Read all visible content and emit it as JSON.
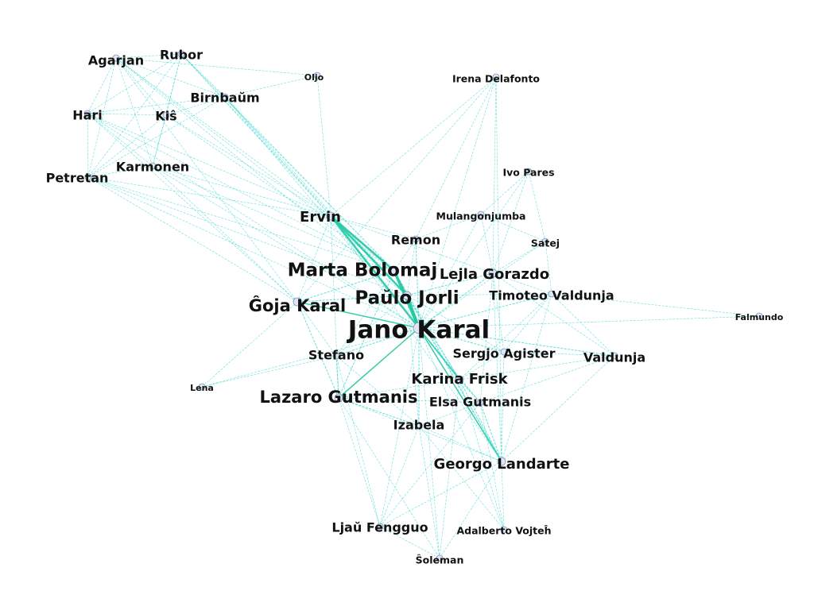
{
  "graph": {
    "edge_color": "#33d6c9",
    "edge_strong_color": "#1fc79f",
    "node_fill": "#dfe6f6",
    "node_stroke": "#7f8fb5",
    "label_color": "#111111",
    "nodes": [
      {
        "id": "jano",
        "label": "Jano Karal",
        "weight": 10
      },
      {
        "id": "paulo",
        "label": "Paŭlo Jorli",
        "weight": 7
      },
      {
        "id": "marta",
        "label": "Marta Bolomaj",
        "weight": 7
      },
      {
        "id": "goja",
        "label": "Ĝoja Karal",
        "weight": 6
      },
      {
        "id": "lazaro",
        "label": "Lazaro Gutmanis",
        "weight": 6
      },
      {
        "id": "karina",
        "label": "Karina Frisk",
        "weight": 5
      },
      {
        "id": "georgo",
        "label": "Georgo Landarte",
        "weight": 5
      },
      {
        "id": "lejla",
        "label": "Lejla Gorazdo",
        "weight": 5
      },
      {
        "id": "ervin",
        "label": "Ervin",
        "weight": 5
      },
      {
        "id": "elsa",
        "label": "Elsa Gutmanis",
        "weight": 4
      },
      {
        "id": "agarjan",
        "label": "Agarjan",
        "weight": 4
      },
      {
        "id": "rubor",
        "label": "Rubor",
        "weight": 4
      },
      {
        "id": "birnbaum",
        "label": "Birnbaŭm",
        "weight": 4
      },
      {
        "id": "hari",
        "label": "Hari",
        "weight": 4
      },
      {
        "id": "kis",
        "label": "Kiŝ",
        "weight": 4
      },
      {
        "id": "karmonen",
        "label": "Karmonen",
        "weight": 4
      },
      {
        "id": "petretan",
        "label": "Petretan",
        "weight": 4
      },
      {
        "id": "stefano",
        "label": "Stefano",
        "weight": 4
      },
      {
        "id": "izabela",
        "label": "Izabela",
        "weight": 4
      },
      {
        "id": "sergjo",
        "label": "Sergjo Agister",
        "weight": 4
      },
      {
        "id": "valdunja",
        "label": "Valdunja",
        "weight": 4
      },
      {
        "id": "timoteo",
        "label": "Timoteo Valdunja",
        "weight": 4
      },
      {
        "id": "remon",
        "label": "Remon",
        "weight": 4
      },
      {
        "id": "ljau",
        "label": "Ljaŭ Fengguo",
        "weight": 4
      },
      {
        "id": "mulangonjumba",
        "label": "Mulangonjumba",
        "weight": 3
      },
      {
        "id": "satej",
        "label": "Satej",
        "weight": 3
      },
      {
        "id": "ivo",
        "label": "Ivo Pares",
        "weight": 3
      },
      {
        "id": "irena",
        "label": "Irena Delafonto",
        "weight": 3
      },
      {
        "id": "oljo",
        "label": "Oljo",
        "weight": 2
      },
      {
        "id": "falmundo",
        "label": "Falmundo",
        "weight": 2
      },
      {
        "id": "lena",
        "label": "Lena",
        "weight": 2
      },
      {
        "id": "adalberto",
        "label": "Adalberto Vojteĥ",
        "weight": 3
      },
      {
        "id": "soleman",
        "label": "Ŝoleman",
        "weight": 3
      }
    ],
    "edges": [
      [
        "jano",
        "paulo",
        5
      ],
      [
        "jano",
        "marta",
        5
      ],
      [
        "jano",
        "ervin",
        4
      ],
      [
        "paulo",
        "ervin",
        4
      ],
      [
        "marta",
        "ervin",
        4
      ],
      [
        "jano",
        "goja",
        3
      ],
      [
        "jano",
        "lazaro",
        3
      ],
      [
        "jano",
        "karina",
        3
      ],
      [
        "jano",
        "georgo",
        3
      ],
      [
        "jano",
        "lejla",
        2
      ],
      [
        "jano",
        "elsa",
        2
      ],
      [
        "jano",
        "stefano",
        2
      ],
      [
        "jano",
        "izabela",
        2
      ],
      [
        "jano",
        "sergjo",
        2
      ],
      [
        "jano",
        "valdunja",
        2
      ],
      [
        "jano",
        "timoteo",
        2
      ],
      [
        "jano",
        "remon",
        2
      ],
      [
        "jano",
        "mulangonjumba",
        1
      ],
      [
        "jano",
        "satej",
        1
      ],
      [
        "jano",
        "ivo",
        1
      ],
      [
        "jano",
        "irena",
        1
      ],
      [
        "jano",
        "falmundo",
        1
      ],
      [
        "jano",
        "adalberto",
        1
      ],
      [
        "jano",
        "soleman",
        1
      ],
      [
        "jano",
        "ljau",
        1
      ],
      [
        "jano",
        "lena",
        1
      ],
      [
        "paulo",
        "marta",
        3
      ],
      [
        "paulo",
        "goja",
        2
      ],
      [
        "paulo",
        "lejla",
        2
      ],
      [
        "paulo",
        "karina",
        2
      ],
      [
        "paulo",
        "georgo",
        2
      ],
      [
        "marta",
        "goja",
        2
      ],
      [
        "marta",
        "lazaro",
        2
      ],
      [
        "marta",
        "remon",
        1
      ],
      [
        "lazaro",
        "stefano",
        2
      ],
      [
        "lazaro",
        "izabela",
        2
      ],
      [
        "lazaro",
        "goja",
        2
      ],
      [
        "lazaro",
        "karina",
        1
      ],
      [
        "karina",
        "elsa",
        2
      ],
      [
        "karina",
        "georgo",
        2
      ],
      [
        "georgo",
        "elsa",
        2
      ],
      [
        "georgo",
        "izabela",
        1
      ],
      [
        "georgo",
        "adalberto",
        1
      ],
      [
        "georgo",
        "sergjo",
        1
      ],
      [
        "georgo",
        "valdunja",
        1
      ],
      [
        "sergjo",
        "valdunja",
        1
      ],
      [
        "timoteo",
        "valdunja",
        1
      ],
      [
        "lejla",
        "timoteo",
        1
      ],
      [
        "lejla",
        "satej",
        1
      ],
      [
        "lejla",
        "mulangonjumba",
        1
      ],
      [
        "lejla",
        "ivo",
        1
      ],
      [
        "lejla",
        "sergjo",
        1
      ],
      [
        "remon",
        "mulangonjumba",
        1
      ],
      [
        "remon",
        "irena",
        1
      ],
      [
        "ervin",
        "oljo",
        1
      ],
      [
        "ervin",
        "irena",
        1
      ],
      [
        "ervin",
        "agarjan",
        1
      ],
      [
        "ervin",
        "rubor",
        1
      ],
      [
        "ervin",
        "birnbaum",
        1
      ],
      [
        "ervin",
        "hari",
        1
      ],
      [
        "ervin",
        "kis",
        1
      ],
      [
        "ervin",
        "karmonen",
        1
      ],
      [
        "ervin",
        "petretan",
        1
      ],
      [
        "marta",
        "agarjan",
        1
      ],
      [
        "marta",
        "rubor",
        1
      ],
      [
        "marta",
        "birnbaum",
        1
      ],
      [
        "marta",
        "kis",
        1
      ],
      [
        "marta",
        "karmonen",
        1
      ],
      [
        "marta",
        "petretan",
        1
      ],
      [
        "marta",
        "hari",
        1
      ],
      [
        "paulo",
        "agarjan",
        1
      ],
      [
        "paulo",
        "rubor",
        1
      ],
      [
        "paulo",
        "birnbaum",
        1
      ],
      [
        "paulo",
        "petretan",
        1
      ],
      [
        "jano",
        "birnbaum",
        1
      ],
      [
        "jano",
        "karmonen",
        1
      ],
      [
        "jano",
        "petretan",
        1
      ],
      [
        "jano",
        "hari",
        1
      ],
      [
        "goja",
        "petretan",
        1
      ],
      [
        "goja",
        "karmonen",
        1
      ],
      [
        "goja",
        "hari",
        1
      ],
      [
        "goja",
        "agarjan",
        1
      ],
      [
        "agarjan",
        "rubor",
        1
      ],
      [
        "agarjan",
        "hari",
        1
      ],
      [
        "agarjan",
        "kis",
        1
      ],
      [
        "agarjan",
        "petretan",
        1
      ],
      [
        "agarjan",
        "karmonen",
        1
      ],
      [
        "agarjan",
        "birnbaum",
        1
      ],
      [
        "agarjan",
        "oljo",
        1
      ],
      [
        "rubor",
        "kis",
        1
      ],
      [
        "rubor",
        "hari",
        1
      ],
      [
        "rubor",
        "birnbaum",
        1
      ],
      [
        "rubor",
        "karmonen",
        1
      ],
      [
        "rubor",
        "petretan",
        1
      ],
      [
        "hari",
        "kis",
        1
      ],
      [
        "hari",
        "petretan",
        1
      ],
      [
        "hari",
        "karmonen",
        1
      ],
      [
        "hari",
        "birnbaum",
        1
      ],
      [
        "kis",
        "karmonen",
        1
      ],
      [
        "kis",
        "petretan",
        1
      ],
      [
        "kis",
        "birnbaum",
        1
      ],
      [
        "karmonen",
        "petretan",
        1
      ],
      [
        "birnbaum",
        "oljo",
        1
      ],
      [
        "birnbaum",
        "petretan",
        1
      ],
      [
        "izabela",
        "ljau",
        1
      ],
      [
        "izabela",
        "soleman",
        1
      ],
      [
        "izabela",
        "adalberto",
        1
      ],
      [
        "izabela",
        "elsa",
        1
      ],
      [
        "stefano",
        "lena",
        1
      ],
      [
        "stefano",
        "ljau",
        1
      ],
      [
        "stefano",
        "izabela",
        1
      ],
      [
        "stefano",
        "goja",
        1
      ],
      [
        "ljau",
        "soleman",
        1
      ],
      [
        "ljau",
        "georgo",
        1
      ],
      [
        "ljau",
        "elsa",
        1
      ],
      [
        "soleman",
        "georgo",
        1
      ],
      [
        "soleman",
        "karina",
        1
      ],
      [
        "adalberto",
        "elsa",
        1
      ],
      [
        "adalberto",
        "karina",
        1
      ],
      [
        "elsa",
        "valdunja",
        1
      ],
      [
        "karina",
        "valdunja",
        1
      ],
      [
        "karina",
        "timoteo",
        1
      ],
      [
        "karina",
        "sergjo",
        1
      ],
      [
        "elsa",
        "lejla",
        1
      ],
      [
        "georgo",
        "lejla",
        1
      ],
      [
        "goja",
        "lena",
        1
      ],
      [
        "lazaro",
        "ljau",
        1
      ],
      [
        "lazaro",
        "soleman",
        1
      ],
      [
        "lazaro",
        "georgo",
        1
      ],
      [
        "lazaro",
        "elsa",
        1
      ],
      [
        "paulo",
        "remon",
        1
      ],
      [
        "paulo",
        "izabela",
        1
      ],
      [
        "paulo",
        "stefano",
        1
      ],
      [
        "marta",
        "stefano",
        1
      ],
      [
        "marta",
        "karina",
        1
      ],
      [
        "marta",
        "georgo",
        1
      ],
      [
        "ervin",
        "remon",
        1
      ],
      [
        "ervin",
        "lejla",
        1
      ],
      [
        "ervin",
        "goja",
        1
      ],
      [
        "ervin",
        "lazaro",
        1
      ],
      [
        "ervin",
        "karina",
        1
      ],
      [
        "ervin",
        "georgo",
        1
      ],
      [
        "mulangonjumba",
        "satej",
        1
      ],
      [
        "mulangonjumba",
        "ivo",
        1
      ],
      [
        "satej",
        "timoteo",
        1
      ],
      [
        "satej",
        "ivo",
        1
      ],
      [
        "irena",
        "lejla",
        1
      ],
      [
        "irena",
        "georgo",
        1
      ],
      [
        "irena",
        "goja",
        1
      ],
      [
        "timoteo",
        "falmundo",
        1
      ],
      [
        "valdunja",
        "lejla",
        1
      ],
      [
        "sergjo",
        "timoteo",
        1
      ],
      [
        "georgo",
        "timoteo",
        1
      ],
      [
        "paulo",
        "timoteo",
        1
      ],
      [
        "paulo",
        "sergjo",
        1
      ]
    ]
  }
}
